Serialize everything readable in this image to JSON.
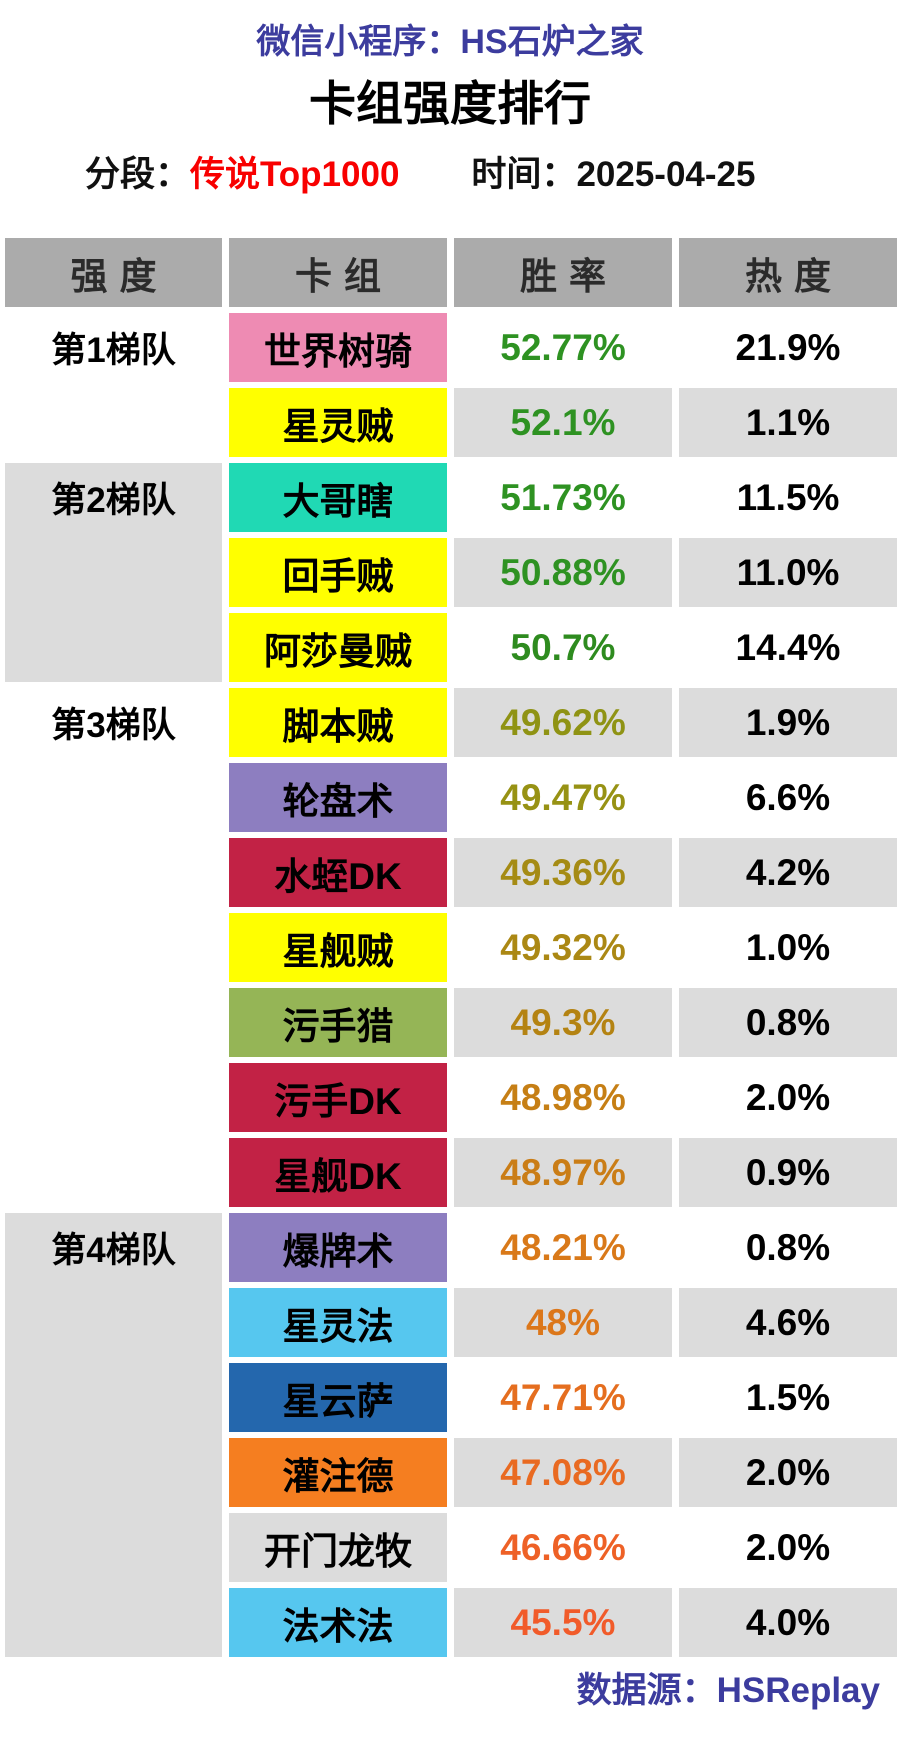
{
  "header": {
    "app_line": "微信小程序：HS石炉之家",
    "title": "卡组强度排行",
    "segment_label": "分段：",
    "segment_value": "传说Top1000",
    "time_label": "时间：",
    "time_value": "2025-04-25"
  },
  "footer": {
    "source_label": "数据源：",
    "source_value": "HSReplay"
  },
  "colors": {
    "accent_purple": "#3C3C9E",
    "accent_red": "#F80000",
    "header_bg": "#ABABAB",
    "alt_row_bg": "#DCDCDC",
    "page_bg": "#FFFFFF"
  },
  "chart_data": {
    "type": "table",
    "title": "卡组强度排行",
    "subtitle": "分段：传说Top1000 时间：2025-04-25",
    "columns": [
      "强度",
      "卡组",
      "胜率",
      "热度"
    ],
    "tiers": [
      {
        "label": "第1梯队",
        "row_count": 2
      },
      {
        "label": "第2梯队",
        "row_count": 3
      },
      {
        "label": "第3梯队",
        "row_count": 7
      },
      {
        "label": "第4梯队",
        "row_count": 6
      }
    ],
    "rows": [
      {
        "tier": "第1梯队",
        "deck": "世界树骑",
        "win_rate": "52.77%",
        "heat": "21.9%",
        "deck_color": "#EE8BB3",
        "win_rate_color": "#2E9222"
      },
      {
        "tier": "第1梯队",
        "deck": "星灵贼",
        "win_rate": "52.1%",
        "heat": "1.1%",
        "deck_color": "#FFFF00",
        "win_rate_color": "#2E9222"
      },
      {
        "tier": "第2梯队",
        "deck": "大哥瞎",
        "win_rate": "51.73%",
        "heat": "11.5%",
        "deck_color": "#20D9B4",
        "win_rate_color": "#2E9222"
      },
      {
        "tier": "第2梯队",
        "deck": "回手贼",
        "win_rate": "50.88%",
        "heat": "11.0%",
        "deck_color": "#FFFF00",
        "win_rate_color": "#2E9222"
      },
      {
        "tier": "第2梯队",
        "deck": "阿莎曼贼",
        "win_rate": "50.7%",
        "heat": "14.4%",
        "deck_color": "#FFFF00",
        "win_rate_color": "#2E8B1F"
      },
      {
        "tier": "第3梯队",
        "deck": "脚本贼",
        "win_rate": "49.62%",
        "heat": "1.9%",
        "deck_color": "#FFFF00",
        "win_rate_color": "#8F9314"
      },
      {
        "tier": "第3梯队",
        "deck": "轮盘术",
        "win_rate": "49.47%",
        "heat": "6.6%",
        "deck_color": "#8D7EC0",
        "win_rate_color": "#979214"
      },
      {
        "tier": "第3梯队",
        "deck": "水蛭DK",
        "win_rate": "49.36%",
        "heat": "4.2%",
        "deck_color": "#C22245",
        "win_rate_color": "#A58B14"
      },
      {
        "tier": "第3梯队",
        "deck": "星舰贼",
        "win_rate": "49.32%",
        "heat": "1.0%",
        "deck_color": "#FFFF00",
        "win_rate_color": "#AB8814"
      },
      {
        "tier": "第3梯队",
        "deck": "污手猎",
        "win_rate": "49.3%",
        "heat": "0.8%",
        "deck_color": "#95B556",
        "win_rate_color": "#B48312"
      },
      {
        "tier": "第3梯队",
        "deck": "污手DK",
        "win_rate": "48.98%",
        "heat": "2.0%",
        "deck_color": "#C22245",
        "win_rate_color": "#C67F15"
      },
      {
        "tier": "第3梯队",
        "deck": "星舰DK",
        "win_rate": "48.97%",
        "heat": "0.9%",
        "deck_color": "#C22245",
        "win_rate_color": "#CA7D16"
      },
      {
        "tier": "第4梯队",
        "deck": "爆牌术",
        "win_rate": "48.21%",
        "heat": "0.8%",
        "deck_color": "#8D7EC0",
        "win_rate_color": "#D97919"
      },
      {
        "tier": "第4梯队",
        "deck": "星灵法",
        "win_rate": "48%",
        "heat": "4.6%",
        "deck_color": "#56C7EF",
        "win_rate_color": "#DC771A"
      },
      {
        "tier": "第4梯队",
        "deck": "星云萨",
        "win_rate": "47.71%",
        "heat": "1.5%",
        "deck_color": "#2467AD",
        "win_rate_color": "#E56E1F"
      },
      {
        "tier": "第4梯队",
        "deck": "灌注德",
        "win_rate": "47.08%",
        "heat": "2.0%",
        "deck_color": "#F57E20",
        "win_rate_color": "#E96A21"
      },
      {
        "tier": "第4梯队",
        "deck": "开门龙牧",
        "win_rate": "46.66%",
        "heat": "2.0%",
        "deck_color": "#DCDCDC",
        "win_rate_color": "#EE6126"
      },
      {
        "tier": "第4梯队",
        "deck": "法术法",
        "win_rate": "45.5%",
        "heat": "4.0%",
        "deck_color": "#56C7EF",
        "win_rate_color": "#F15B2A"
      }
    ],
    "legend": "胜率文字颜色由绿(高胜率)渐变到橙红(低胜率)，行背景白灰交替，卡组底色代表职业"
  }
}
